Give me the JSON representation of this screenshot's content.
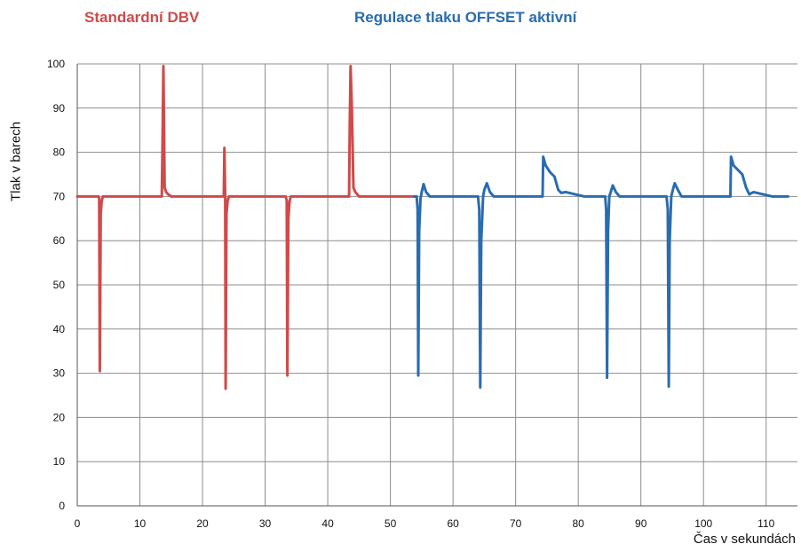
{
  "chart_data": {
    "type": "line",
    "xlabel": "Čas v sekundách",
    "ylabel": "Tlak v barech",
    "xlim": [
      0,
      115
    ],
    "ylim": [
      0,
      100
    ],
    "x_ticks": [
      0,
      10,
      20,
      30,
      40,
      50,
      60,
      70,
      80,
      90,
      100,
      110
    ],
    "y_ticks": [
      0,
      10,
      20,
      30,
      40,
      50,
      60,
      70,
      80,
      90,
      100
    ],
    "grid": true,
    "annotations": [
      {
        "text": "Standardní DBV",
        "color": "#d04a4a"
      },
      {
        "text": "Regulace tlaku OFFSET aktivní",
        "color": "#2a6cb0"
      }
    ],
    "series": [
      {
        "color": "#d04a4a",
        "points": [
          [
            0,
            70
          ],
          [
            3.4,
            70
          ],
          [
            3.5,
            69.5
          ],
          [
            3.6,
            30.5
          ],
          [
            3.75,
            66
          ],
          [
            3.9,
            69
          ],
          [
            4.1,
            70
          ],
          [
            13.5,
            70
          ],
          [
            13.6,
            80
          ],
          [
            13.75,
            99.5
          ],
          [
            13.95,
            72
          ],
          [
            14.2,
            71
          ],
          [
            14.5,
            70.5
          ],
          [
            15,
            70
          ],
          [
            23.4,
            70
          ],
          [
            23.5,
            81
          ],
          [
            23.62,
            70
          ],
          [
            23.7,
            26.5
          ],
          [
            23.82,
            66
          ],
          [
            24,
            69
          ],
          [
            24.2,
            70
          ],
          [
            33.3,
            70
          ],
          [
            33.45,
            69
          ],
          [
            33.55,
            29.5
          ],
          [
            33.7,
            65
          ],
          [
            33.9,
            69
          ],
          [
            34.1,
            70
          ],
          [
            43.4,
            70
          ],
          [
            43.5,
            85
          ],
          [
            43.65,
            99.5
          ],
          [
            43.85,
            90
          ],
          [
            44.1,
            72
          ],
          [
            44.4,
            71
          ],
          [
            45,
            70
          ],
          [
            53.8,
            70
          ]
        ]
      },
      {
        "color": "#2a6cb0",
        "points": [
          [
            53.8,
            70
          ],
          [
            54.2,
            70
          ],
          [
            54.35,
            67
          ],
          [
            54.45,
            29.5
          ],
          [
            54.6,
            62
          ],
          [
            54.8,
            69.5
          ],
          [
            55,
            71
          ],
          [
            55.3,
            72.8
          ],
          [
            55.7,
            71
          ],
          [
            56.3,
            70
          ],
          [
            64,
            70
          ],
          [
            64.2,
            67
          ],
          [
            64.35,
            26.8
          ],
          [
            64.5,
            60
          ],
          [
            64.8,
            70
          ],
          [
            65,
            71.5
          ],
          [
            65.4,
            73
          ],
          [
            65.9,
            71
          ],
          [
            66.5,
            70
          ],
          [
            74.3,
            70
          ],
          [
            74.4,
            79
          ],
          [
            74.8,
            77
          ],
          [
            75.5,
            75.5
          ],
          [
            76.2,
            74.5
          ],
          [
            76.8,
            71.5
          ],
          [
            77.3,
            70.8
          ],
          [
            78,
            71
          ],
          [
            79.5,
            70.5
          ],
          [
            81,
            70
          ],
          [
            84.3,
            70
          ],
          [
            84.45,
            67
          ],
          [
            84.6,
            29
          ],
          [
            84.75,
            62
          ],
          [
            84.95,
            70
          ],
          [
            85.2,
            71
          ],
          [
            85.5,
            72.5
          ],
          [
            86,
            71
          ],
          [
            86.6,
            70
          ],
          [
            94.1,
            70
          ],
          [
            94.3,
            67
          ],
          [
            94.45,
            27
          ],
          [
            94.6,
            60
          ],
          [
            94.85,
            70
          ],
          [
            95.1,
            71.5
          ],
          [
            95.4,
            73
          ],
          [
            95.9,
            71.5
          ],
          [
            96.5,
            70
          ],
          [
            104.3,
            70
          ],
          [
            104.4,
            79
          ],
          [
            104.8,
            77
          ],
          [
            105.5,
            76
          ],
          [
            106.2,
            75
          ],
          [
            106.8,
            72
          ],
          [
            107.3,
            70.5
          ],
          [
            108,
            71
          ],
          [
            109.5,
            70.5
          ],
          [
            111,
            70
          ],
          [
            113.5,
            70
          ]
        ]
      }
    ]
  }
}
